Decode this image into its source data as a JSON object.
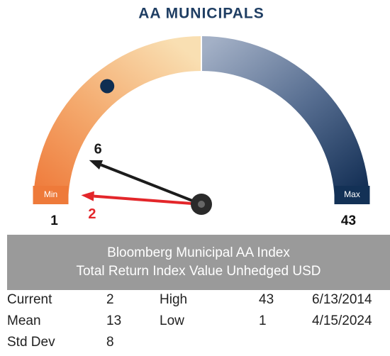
{
  "chart_data": {
    "type": "gauge",
    "title": "AA MUNICIPALS",
    "ylim": [
      1,
      43
    ],
    "yticks": [
      1,
      43
    ],
    "min_label": "Min",
    "max_label": "Max",
    "min_color": "#ee7a3a",
    "max_color": "#133156",
    "marker_color": "#0f2e52",
    "needles": [
      {
        "value": 6,
        "color": "#1c1c1c"
      },
      {
        "value": 2,
        "color": "#e3262a"
      }
    ]
  },
  "stats": {
    "title_lines": [
      "Bloomberg Municipal AA Index",
      "Total Return Index Value Unhedged USD"
    ],
    "rows": [
      [
        "Current",
        2,
        "High",
        43,
        "6/13/2014"
      ],
      [
        "Mean",
        13,
        "Low",
        1,
        "4/15/2024"
      ],
      [
        "Std Dev",
        8
      ]
    ]
  }
}
